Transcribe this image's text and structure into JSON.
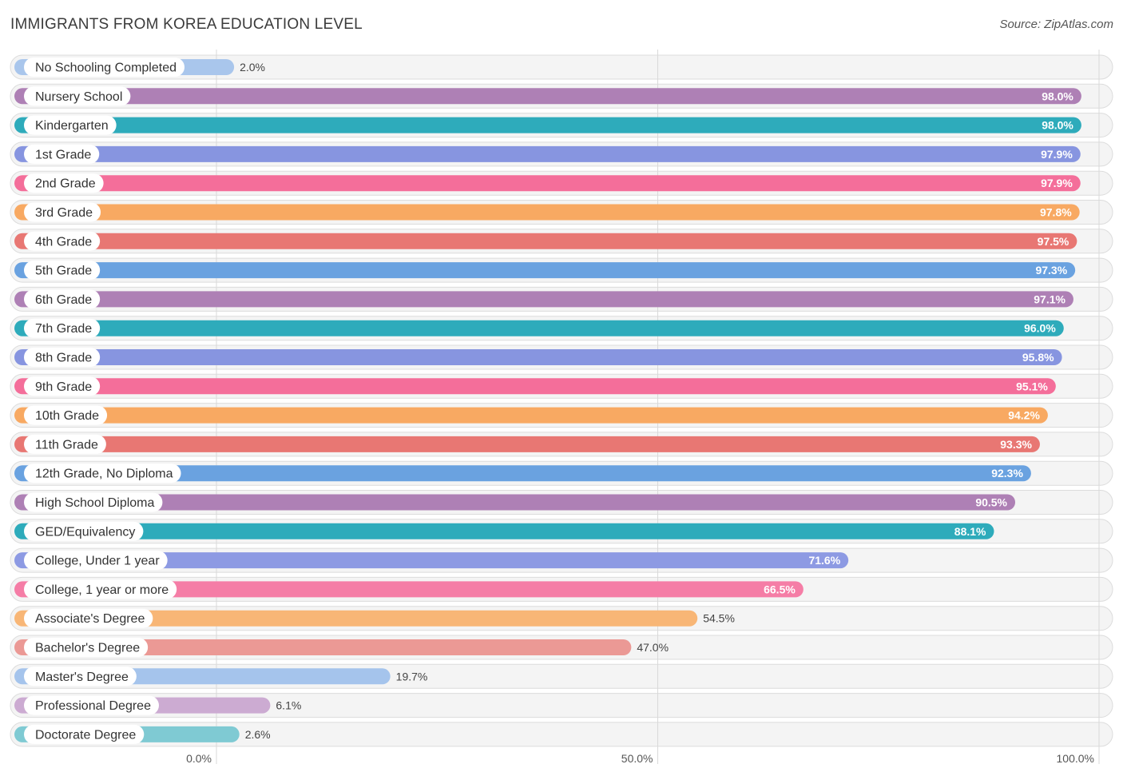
{
  "header": {
    "title": "IMMIGRANTS FROM KOREA EDUCATION LEVEL",
    "source": "Source: ZipAtlas.com"
  },
  "chart_data": {
    "type": "bar",
    "orientation": "horizontal",
    "title": "IMMIGRANTS FROM KOREA EDUCATION LEVEL",
    "categories": [
      "No Schooling Completed",
      "Nursery School",
      "Kindergarten",
      "1st Grade",
      "2nd Grade",
      "3rd Grade",
      "4th Grade",
      "5th Grade",
      "6th Grade",
      "7th Grade",
      "8th Grade",
      "9th Grade",
      "10th Grade",
      "11th Grade",
      "12th Grade, No Diploma",
      "High School Diploma",
      "GED/Equivalency",
      "College, Under 1 year",
      "College, 1 year or more",
      "Associate's Degree",
      "Bachelor's Degree",
      "Master's Degree",
      "Professional Degree",
      "Doctorate Degree"
    ],
    "values": [
      2.0,
      98.0,
      98.0,
      97.9,
      97.9,
      97.8,
      97.5,
      97.3,
      97.1,
      96.0,
      95.8,
      95.1,
      94.2,
      93.3,
      92.3,
      90.5,
      88.1,
      71.6,
      66.5,
      54.5,
      47.0,
      19.7,
      6.1,
      2.6
    ],
    "value_labels": [
      "2.0%",
      "98.0%",
      "98.0%",
      "97.9%",
      "97.9%",
      "97.8%",
      "97.5%",
      "97.3%",
      "97.1%",
      "96.0%",
      "95.8%",
      "95.1%",
      "94.2%",
      "93.3%",
      "92.3%",
      "90.5%",
      "88.1%",
      "71.6%",
      "66.5%",
      "54.5%",
      "47.0%",
      "19.7%",
      "6.1%",
      "2.6%"
    ],
    "colors": [
      "#a9c6ec",
      "#ae80b5",
      "#2eabbb",
      "#8795e0",
      "#f46e9a",
      "#f8a962",
      "#e87773",
      "#6aa2e0",
      "#ae80b5",
      "#2eabbb",
      "#8795e0",
      "#f46e9a",
      "#f8a962",
      "#e87773",
      "#6aa2e0",
      "#ae80b5",
      "#2eabbb",
      "#8d9ae3",
      "#f57da6",
      "#f8b676",
      "#eb9995",
      "#a5c4ec",
      "#ccabd2",
      "#7fcad3"
    ],
    "xlim": [
      0,
      100
    ],
    "x_ticks": [
      "0.0%",
      "50.0%",
      "100.0%"
    ],
    "x_tick_values": [
      0,
      50,
      100
    ],
    "grid": true
  }
}
